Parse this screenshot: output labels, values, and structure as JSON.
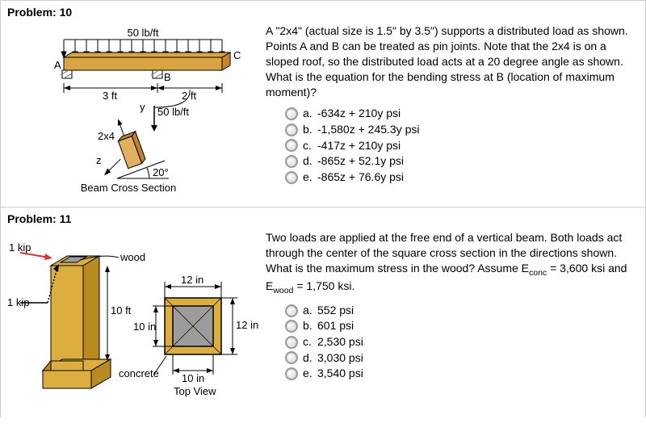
{
  "problem10": {
    "header": "Problem: 10",
    "figure": {
      "load_label": "50 lb/ft",
      "pointA": "A",
      "pointB": "B",
      "pointC": "C",
      "dim1": "3 ft",
      "dim2": "2 ft",
      "section_load": "50 lb/ft",
      "section_label": "2x4",
      "axis_y": "y",
      "axis_z": "z",
      "angle": "20°",
      "caption": "Beam Cross Section",
      "colors": {
        "beam": "#d9a441",
        "beam_face": "#c8872e",
        "hatch": "#6b6b6b",
        "arrow": "#000000",
        "section_fill": "#e0b060",
        "section_face": "#c08030"
      }
    },
    "text": "A \"2x4\" (actual size is 1.5\" by 3.5\") supports a distributed load as shown. Points A and B can be treated as pin joints. Note that the 2x4 is on a sloped roof, so the distributed load acts at a 20 degree angle as shown. What is the equation for the bending stress at B (location of maximum moment)?",
    "choices": [
      {
        "letter": "a.",
        "text": "-634z + 210y psi"
      },
      {
        "letter": "b.",
        "text": "-1,580z + 245.3y psi"
      },
      {
        "letter": "c.",
        "text": "-417z + 210y psi"
      },
      {
        "letter": "d.",
        "text": "-865z + 52.1y psi"
      },
      {
        "letter": "e.",
        "text": "-865z + 76.6y psi"
      }
    ]
  },
  "problem11": {
    "header": "Problem: 11",
    "figure": {
      "load1": "1 kip",
      "load2": "1 kip",
      "wood_label": "wood",
      "concrete_label": "concrete",
      "height": "10 ft",
      "outer_dim1": "12 in",
      "outer_dim2": "12 in",
      "inner_dim1": "10 in",
      "inner_dim2": "10 in",
      "caption": "Top View",
      "colors": {
        "concrete": "#dcae3f",
        "concrete_side": "#b88a20",
        "wood": "#9c9c9c",
        "wood_side": "#787878",
        "line": "#000"
      }
    },
    "text_html": "Two loads are applied at the free end of a vertical beam. Both loads act through the center of the square cross section in the directions shown. What is the maximum stress in the wood? Assume E<sub>conc</sub> = 3,600 ksi and E<sub>wood</sub> = 1,750 ksi.",
    "choices": [
      {
        "letter": "a.",
        "text": "552 psi"
      },
      {
        "letter": "b.",
        "text": "601 psi"
      },
      {
        "letter": "c.",
        "text": "2,530 psi"
      },
      {
        "letter": "d.",
        "text": "3,030 psi"
      },
      {
        "letter": "e.",
        "text": "3,540 psi"
      }
    ]
  }
}
